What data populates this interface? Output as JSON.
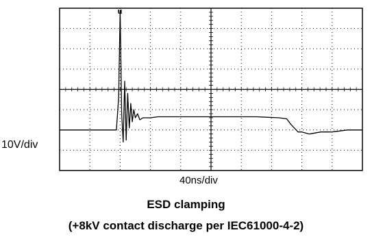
{
  "chart_data": {
    "type": "line",
    "title": "ESD clamping",
    "subtitle": "(+8kV contact discharge per IEC61000-4-2)",
    "ylabel": "10V/div",
    "xlabel": "40ns/div",
    "trigger_marker": "u",
    "grid": true,
    "x_divisions": 10,
    "y_divisions": 8,
    "x_unit": "ns",
    "y_unit": "V",
    "xlim": [
      0,
      400
    ],
    "ylim": [
      -20,
      60
    ],
    "series": [
      {
        "x": [
          0,
          20,
          40,
          60,
          70,
          75,
          78,
          80,
          82,
          84,
          86,
          88,
          90,
          92,
          94,
          96,
          98,
          100,
          103,
          106,
          110,
          115,
          120,
          130,
          150,
          180,
          220,
          260,
          290,
          300,
          305,
          310,
          315,
          320,
          330,
          345,
          360,
          380,
          400
        ],
        "y": [
          0,
          0,
          0,
          0,
          0,
          0,
          16,
          59,
          8,
          -6,
          24,
          -5,
          18,
          1,
          13,
          4,
          10,
          6,
          8,
          5,
          6,
          6,
          6,
          6.5,
          6.5,
          6.5,
          6.5,
          6.5,
          6,
          5.5,
          3,
          1,
          -1,
          -1,
          -2,
          -1,
          -1,
          0,
          0
        ]
      }
    ]
  }
}
